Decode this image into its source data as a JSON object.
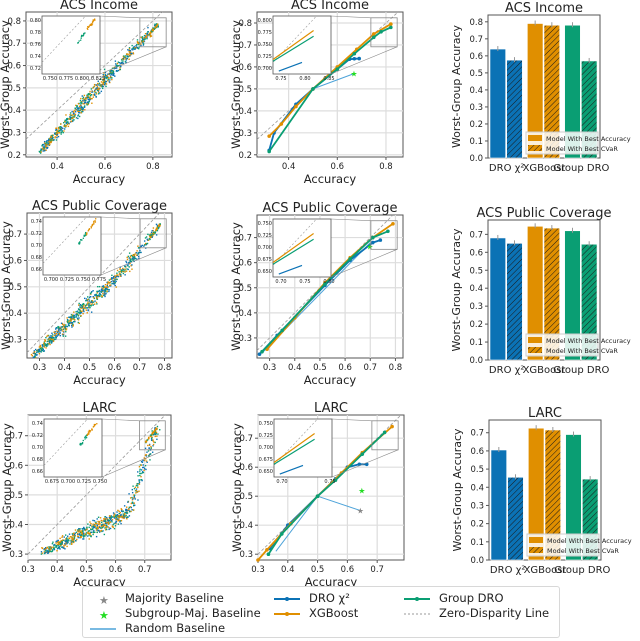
{
  "colors": {
    "dro": "#0b72b5",
    "xgb": "#e08f00",
    "gdro": "#0a9e73",
    "majority": "#888888",
    "subgroup": "#22dd22",
    "random": "#4da3d9",
    "diag": "#999999",
    "grid": "#dddddd"
  },
  "legend": {
    "items": [
      {
        "key": "majority",
        "label": "Majority Baseline",
        "type": "star"
      },
      {
        "key": "subgroup",
        "label": "Subgroup-Maj. Baseline",
        "type": "star"
      },
      {
        "key": "random",
        "label": "Random Baseline",
        "type": "line"
      },
      {
        "key": "dro",
        "label": "DRO χ²",
        "type": "linemarker"
      },
      {
        "key": "xgb",
        "label": "XGBoost",
        "type": "linemarker"
      },
      {
        "key": "gdro",
        "label": "Group DRO",
        "type": "linemarker"
      },
      {
        "key": "diag",
        "label": "Zero-Disparity Line",
        "type": "dashed"
      }
    ]
  },
  "chart_data": [
    {
      "id": "income-scatter",
      "type": "scatter",
      "title": "ACS Income",
      "xlabel": "Accuracy",
      "ylabel": "Worst-Group Accuracy",
      "xlim": [
        0.27,
        0.88
      ],
      "ylim": [
        0.19,
        0.84
      ],
      "xticks": [
        0.4,
        0.6,
        0.8
      ],
      "yticks": [
        0.2,
        0.3,
        0.4,
        0.5,
        0.6,
        0.7,
        0.8
      ],
      "cloud": {
        "start": [
          0.33,
          0.22
        ],
        "knee": [
          0.65,
          0.6
        ],
        "end": [
          0.82,
          0.79
        ]
      },
      "inset": {
        "xticks": [
          "0.750",
          "0.775",
          "0.800",
          "0.825"
        ],
        "yticks": [
          "0.72",
          "0.74",
          "0.76",
          "0.78",
          "0.80"
        ]
      }
    },
    {
      "id": "income-lines",
      "type": "line",
      "title": "ACS Income",
      "xlabel": "Accuracy",
      "ylabel": "Worst-Group Accuracy",
      "xlim": [
        0.27,
        0.87
      ],
      "ylim": [
        0.19,
        0.85
      ],
      "xticks": [
        0.4,
        0.6,
        0.8
      ],
      "yticks": [
        0.2,
        0.3,
        0.4,
        0.5,
        0.6,
        0.7,
        0.8
      ],
      "series": [
        {
          "key": "dro",
          "points": [
            [
              0.32,
              0.22
            ],
            [
              0.34,
              0.3
            ],
            [
              0.43,
              0.43
            ],
            [
              0.5,
              0.5
            ],
            [
              0.6,
              0.59
            ],
            [
              0.65,
              0.635
            ],
            [
              0.67,
              0.637
            ],
            [
              0.69,
              0.638
            ]
          ]
        },
        {
          "key": "xgb",
          "points": [
            [
              0.32,
              0.285
            ],
            [
              0.37,
              0.34
            ],
            [
              0.43,
              0.42
            ],
            [
              0.5,
              0.5
            ],
            [
              0.6,
              0.6
            ],
            [
              0.68,
              0.68
            ],
            [
              0.75,
              0.75
            ],
            [
              0.82,
              0.795
            ]
          ]
        },
        {
          "key": "gdro",
          "points": [
            [
              0.32,
              0.215
            ],
            [
              0.5,
              0.5
            ],
            [
              0.6,
              0.59
            ],
            [
              0.67,
              0.66
            ],
            [
              0.75,
              0.735
            ],
            [
              0.78,
              0.76
            ],
            [
              0.82,
              0.78
            ]
          ]
        }
      ],
      "random": [
        [
          0.5,
          0.5
        ],
        [
          0.67,
          0.57
        ]
      ],
      "subgroup": [
        0.67,
        0.57
      ],
      "inset": {
        "xticks": [
          "0.75",
          "0.80",
          "0.85"
        ],
        "yticks": [
          "0.700",
          "0.725",
          "0.750",
          "0.775",
          "0.800"
        ]
      }
    },
    {
      "id": "income-bars",
      "type": "bar",
      "title": "ACS Income",
      "ylabel": "Worst-Group Accuracy",
      "ylim": [
        0,
        0.84
      ],
      "yticks": [
        "0.0",
        "0.1",
        "0.2",
        "0.3",
        "0.4",
        "0.5",
        "0.6",
        "0.7",
        "0.8"
      ],
      "categories": [
        "DRO χ²",
        "XGBoost",
        "Group DRO"
      ],
      "series": [
        {
          "name": "Model With Best Accuracy",
          "values": [
            0.64,
            0.79,
            0.78
          ]
        },
        {
          "name": "Model With Best CVaR",
          "values": [
            0.575,
            0.78,
            0.57
          ]
        }
      ]
    },
    {
      "id": "pubcov-scatter",
      "type": "scatter",
      "title": "ACS Public Coverage",
      "xlabel": "Accuracy",
      "ylabel": "Worst-Group Accuracy",
      "xlim": [
        0.25,
        0.83
      ],
      "ylim": [
        0.23,
        0.78
      ],
      "xticks": [
        0.3,
        0.4,
        0.5,
        0.6,
        0.7,
        0.8
      ],
      "yticks": [
        0.3,
        0.4,
        0.5,
        0.6,
        0.7
      ],
      "cloud": {
        "start": [
          0.27,
          0.24
        ],
        "knee": [
          0.62,
          0.55
        ],
        "end": [
          0.78,
          0.74
        ]
      },
      "inset": {
        "xticks": [
          "0.700",
          "0.725",
          "0.750",
          "0.775"
        ],
        "yticks": [
          "0.66",
          "0.68",
          "0.70",
          "0.72",
          "0.74"
        ]
      }
    },
    {
      "id": "pubcov-lines",
      "type": "line",
      "title": "ACS Public Coverage",
      "xlabel": "Accuracy",
      "ylabel": "Worst-Group Accuracy",
      "xlim": [
        0.25,
        0.83
      ],
      "ylim": [
        0.22,
        0.79
      ],
      "xticks": [
        0.3,
        0.4,
        0.5,
        0.6,
        0.7,
        0.8
      ],
      "yticks": [
        0.3,
        0.4,
        0.5,
        0.6,
        0.7
      ],
      "series": [
        {
          "key": "dro",
          "points": [
            [
              0.26,
              0.235
            ],
            [
              0.33,
              0.31
            ],
            [
              0.52,
              0.51
            ],
            [
              0.62,
              0.61
            ],
            [
              0.71,
              0.68
            ],
            [
              0.74,
              0.69
            ]
          ]
        },
        {
          "key": "xgb",
          "points": [
            [
              0.29,
              0.255
            ],
            [
              0.4,
              0.38
            ],
            [
              0.52,
              0.52
            ],
            [
              0.62,
              0.62
            ],
            [
              0.71,
              0.7
            ],
            [
              0.79,
              0.755
            ]
          ]
        },
        {
          "key": "gdro",
          "points": [
            [
              0.27,
              0.245
            ],
            [
              0.35,
              0.33
            ],
            [
              0.52,
              0.515
            ],
            [
              0.62,
              0.615
            ],
            [
              0.71,
              0.7
            ],
            [
              0.77,
              0.725
            ]
          ]
        }
      ],
      "random": [
        [
          0.27,
          0.24
        ],
        [
          0.7,
          0.68
        ]
      ],
      "subgroup": [
        0.7,
        0.665
      ],
      "inset": {
        "xticks": [
          "0.70",
          "0.75",
          "0.80"
        ],
        "yticks": [
          "0.650",
          "0.675",
          "0.700",
          "0.725",
          "0.750"
        ]
      }
    },
    {
      "id": "pubcov-bars",
      "type": "bar",
      "title": "ACS Public Coverage",
      "ylabel": "Worst-Group Accuracy",
      "ylim": [
        0,
        0.78
      ],
      "yticks": [
        "0.0",
        "0.1",
        "0.2",
        "0.3",
        "0.4",
        "0.5",
        "0.6",
        "0.7"
      ],
      "categories": [
        "DRO χ²",
        "XGBoost",
        "Group DRO"
      ],
      "series": [
        {
          "name": "Model With Best Accuracy",
          "values": [
            0.68,
            0.745,
            0.72
          ]
        },
        {
          "name": "Model With Best CVaR",
          "values": [
            0.65,
            0.735,
            0.645
          ]
        }
      ]
    },
    {
      "id": "larc-scatter",
      "type": "scatter",
      "title": "LARC",
      "xlabel": "Accuracy",
      "ylabel": "Worst-Group Accuracy",
      "xlim": [
        0.3,
        0.79
      ],
      "ylim": [
        0.28,
        0.77
      ],
      "xticks": [
        0.3,
        0.4,
        0.5,
        0.6,
        0.7
      ],
      "yticks": [
        0.3,
        0.4,
        0.5,
        0.6,
        0.7
      ],
      "cloud": {
        "start": [
          0.35,
          0.31
        ],
        "knee": [
          0.64,
          0.44
        ],
        "end": [
          0.74,
          0.73
        ]
      },
      "inset": {
        "xticks": [
          "0.675",
          "0.700",
          "0.725",
          "0.750"
        ],
        "yticks": [
          "0.66",
          "0.68",
          "0.70",
          "0.72",
          "0.74"
        ]
      }
    },
    {
      "id": "larc-lines",
      "type": "line",
      "title": "LARC",
      "xlabel": "Accuracy",
      "ylabel": "Worst-Group Accuracy",
      "xlim": [
        0.3,
        0.79
      ],
      "ylim": [
        0.28,
        0.78
      ],
      "xticks": [
        0.3,
        0.4,
        0.5,
        0.6,
        0.7
      ],
      "yticks": [
        0.3,
        0.4,
        0.5,
        0.6,
        0.7
      ],
      "series": [
        {
          "key": "dro",
          "points": [
            [
              0.34,
              0.32
            ],
            [
              0.4,
              0.4
            ],
            [
              0.5,
              0.5
            ],
            [
              0.56,
              0.56
            ],
            [
              0.6,
              0.6
            ],
            [
              0.64,
              0.61
            ],
            [
              0.665,
              0.61
            ]
          ]
        },
        {
          "key": "xgb",
          "points": [
            [
              0.3,
              0.28
            ],
            [
              0.33,
              0.315
            ],
            [
              0.41,
              0.405
            ],
            [
              0.5,
              0.5
            ],
            [
              0.58,
              0.58
            ],
            [
              0.65,
              0.65
            ],
            [
              0.75,
              0.74
            ]
          ]
        },
        {
          "key": "gdro",
          "points": [
            [
              0.335,
              0.3
            ],
            [
              0.38,
              0.37
            ],
            [
              0.5,
              0.5
            ],
            [
              0.56,
              0.555
            ],
            [
              0.65,
              0.645
            ],
            [
              0.725,
              0.72
            ]
          ]
        }
      ],
      "random": [
        [
          0.36,
          0.31
        ],
        [
          0.5,
          0.5
        ],
        [
          0.645,
          0.45
        ]
      ],
      "subgroup": [
        0.65,
        0.52
      ],
      "majority": [
        0.645,
        0.45
      ],
      "inset": {
        "xticks": [
          "0.70",
          "0.75"
        ],
        "yticks": [
          "0.650",
          "0.675",
          "0.700",
          "0.725",
          "0.750"
        ]
      }
    },
    {
      "id": "larc-bars",
      "type": "bar",
      "title": "LARC",
      "ylabel": "Worst-Group Accuracy",
      "ylim": [
        0,
        0.77
      ],
      "yticks": [
        "0.0",
        "0.1",
        "0.2",
        "0.3",
        "0.4",
        "0.5",
        "0.6",
        "0.7"
      ],
      "categories": [
        "DRO χ²",
        "XGBoost",
        "Group DRO"
      ],
      "series": [
        {
          "name": "Model With Best Accuracy",
          "values": [
            0.605,
            0.725,
            0.69
          ]
        },
        {
          "name": "Model With Best CVaR",
          "values": [
            0.455,
            0.715,
            0.445
          ]
        }
      ]
    }
  ]
}
